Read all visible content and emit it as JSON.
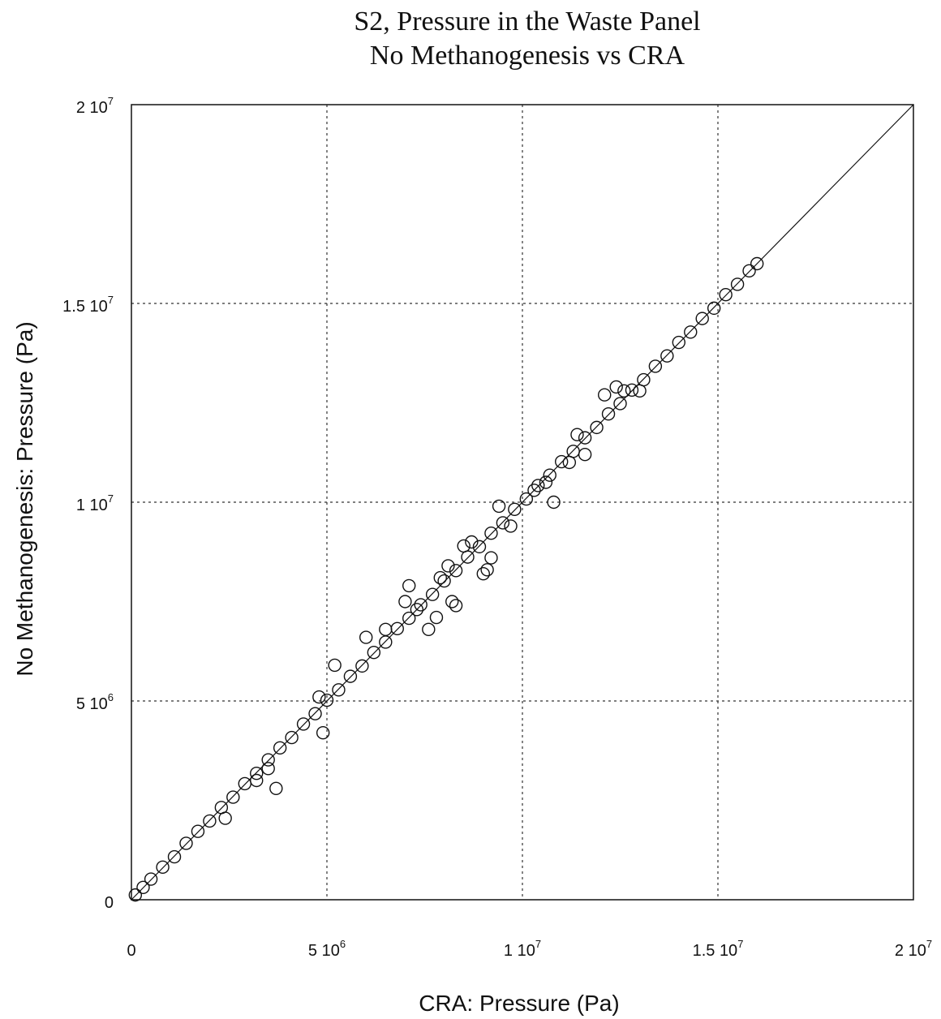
{
  "chart_data": {
    "type": "scatter",
    "title": "S2, Pressure in the Waste Panel",
    "subtitle": "No Methanogenesis vs CRA",
    "xlabel": "CRA:  Pressure (Pa)",
    "ylabel": "No Methanogenesis:  Pressure (Pa)",
    "xlim": [
      0,
      20000000
    ],
    "ylim": [
      0,
      20000000
    ],
    "grid": true,
    "reference_line": "y = x",
    "x_ticks": [
      {
        "base": "0",
        "exp": ""
      },
      {
        "base": "5 10",
        "exp": "6"
      },
      {
        "base": "1 10",
        "exp": "7"
      },
      {
        "base": "1.5 10",
        "exp": "7"
      },
      {
        "base": "2 10",
        "exp": "7"
      }
    ],
    "y_ticks": [
      {
        "base": "0",
        "exp": ""
      },
      {
        "base": "5 10",
        "exp": "6"
      },
      {
        "base": "1 10",
        "exp": "7"
      },
      {
        "base": "1.5 10",
        "exp": "7"
      },
      {
        "base": "2 10",
        "exp": "7"
      }
    ],
    "tick_values": [
      0,
      5000000,
      10000000,
      15000000,
      20000000
    ],
    "series": [
      {
        "marker": "open-circle",
        "x": [
          100000,
          300000,
          500000,
          800000,
          1100000,
          1400000,
          1700000,
          2000000,
          2300000,
          2600000,
          2900000,
          3200000,
          3500000,
          3800000,
          4100000,
          4400000,
          4700000,
          5000000,
          5300000,
          5600000,
          5900000,
          6200000,
          6500000,
          6800000,
          7100000,
          7400000,
          7700000,
          8000000,
          8300000,
          8600000,
          8900000,
          9200000,
          9500000,
          9800000,
          10100000,
          10400000,
          10700000,
          11000000,
          11300000,
          11600000,
          11900000,
          12200000,
          12500000,
          12800000,
          13100000,
          13400000,
          13700000,
          14000000,
          14300000,
          14600000,
          14900000,
          15200000,
          15500000,
          15800000,
          16000000,
          2400000,
          3200000,
          3700000,
          3500000,
          4900000,
          5200000,
          4800000,
          6000000,
          7100000,
          7300000,
          7600000,
          7900000,
          8200000,
          8300000,
          7800000,
          8100000,
          8500000,
          9100000,
          9200000,
          9400000,
          9700000,
          10300000,
          10600000,
          11400000,
          11600000,
          12100000,
          12400000,
          12600000,
          7000000,
          6500000,
          8700000,
          9000000,
          10800000,
          11200000,
          13000000
        ],
        "y": [
          120000,
          310000,
          520000,
          820000,
          1080000,
          1420000,
          1720000,
          1980000,
          2320000,
          2580000,
          2920000,
          3180000,
          3520000,
          3820000,
          4080000,
          4420000,
          4680000,
          5020000,
          5280000,
          5620000,
          5880000,
          6220000,
          6480000,
          6820000,
          7080000,
          7420000,
          7680000,
          8020000,
          8280000,
          8620000,
          8880000,
          9220000,
          9480000,
          9820000,
          10080000,
          10420000,
          10680000,
          11020000,
          11280000,
          11620000,
          11880000,
          12220000,
          12480000,
          12820000,
          13080000,
          13420000,
          13680000,
          14020000,
          14280000,
          14620000,
          14880000,
          15220000,
          15480000,
          15820000,
          16000000,
          2050000,
          3000000,
          2800000,
          3300000,
          4200000,
          5900000,
          5100000,
          6600000,
          7900000,
          7300000,
          6800000,
          8100000,
          7500000,
          7400000,
          7100000,
          8400000,
          8900000,
          8300000,
          8600000,
          9900000,
          9400000,
          10300000,
          10500000,
          11700000,
          11200000,
          12700000,
          12900000,
          12800000,
          7500000,
          6800000,
          9000000,
          8200000,
          10000000,
          11000000,
          12800000
        ]
      }
    ]
  }
}
